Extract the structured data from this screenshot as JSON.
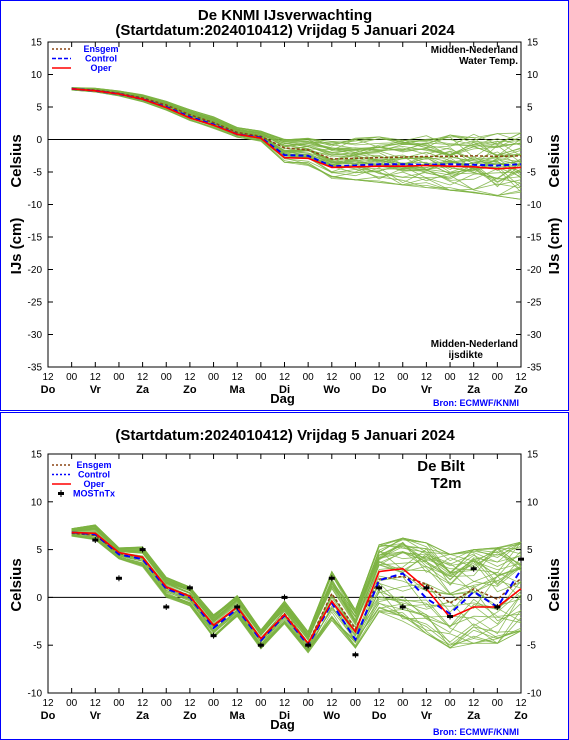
{
  "colors": {
    "ensemble": "#7cb342",
    "ensgem": "#8b4513",
    "control": "#0000ff",
    "oper": "#ff0000",
    "frame": "#0000ff"
  },
  "chart_data": [
    {
      "type": "line",
      "title": "De KNMI IJsverwachting",
      "subtitle": "(Startdatum:2024010412)  Vrijdag  5 Januari 2024",
      "xlabel": "Dag",
      "ylabel_left": "Celsius",
      "ylabel_left2": "IJs (cm)",
      "ylabel_right": "Celsius",
      "ylabel_right2": "IJs (cm)",
      "ylim": [
        -35,
        15
      ],
      "yticks": [
        "15",
        "10",
        "5",
        "0",
        "-5",
        "-10",
        "-15",
        "-20",
        "-25",
        "-30",
        "-35"
      ],
      "xticks_hours": [
        "12",
        "00",
        "12",
        "00",
        "12",
        "00",
        "12",
        "00",
        "12",
        "00",
        "12",
        "00",
        "12",
        "00",
        "12",
        "00",
        "12",
        "00",
        "12",
        "00",
        "12"
      ],
      "xticks_days": [
        {
          "label": "Do",
          "i": 0
        },
        {
          "label": "Vr",
          "i": 2
        },
        {
          "label": "Za",
          "i": 4
        },
        {
          "label": "Zo",
          "i": 6
        },
        {
          "label": "Ma",
          "i": 8
        },
        {
          "label": "Di",
          "i": 10
        },
        {
          "label": "Wo",
          "i": 12
        },
        {
          "label": "Do",
          "i": 14
        },
        {
          "label": "Vr",
          "i": 16
        },
        {
          "label": "Za",
          "i": 18
        },
        {
          "label": "Zo",
          "i": 20
        }
      ],
      "annotation_top": [
        "Midden-Nederland",
        "Water Temp."
      ],
      "annotation_bottom": [
        "Midden-Nederland",
        "ijsdikte"
      ],
      "source": "Bron: ECMWF/KNMI",
      "legend": [
        {
          "name": "Ensgem",
          "style": "dotted",
          "color": "#8b4513"
        },
        {
          "name": "Control",
          "style": "dashed",
          "color": "#0000ff"
        },
        {
          "name": "Oper",
          "style": "solid",
          "color": "#ff0000"
        }
      ],
      "x": [
        1,
        2,
        3,
        4,
        5,
        6,
        7,
        8,
        9,
        10,
        11,
        12,
        13,
        14,
        15,
        16,
        17,
        18,
        19,
        20
      ],
      "series": [
        {
          "name": "Ensgem",
          "values": [
            7.8,
            7.6,
            7.1,
            6.4,
            5.3,
            3.8,
            2.6,
            1.1,
            0.5,
            -1.3,
            -1.6,
            -3.0,
            -2.9,
            -2.8,
            -2.7,
            -2.6,
            -2.6,
            -2.5,
            -2.6,
            -2.5
          ]
        },
        {
          "name": "Control",
          "values": [
            7.8,
            7.5,
            7.0,
            6.2,
            5.0,
            3.5,
            2.3,
            0.8,
            0.3,
            -2.4,
            -2.5,
            -4.1,
            -4.0,
            -3.8,
            -3.8,
            -3.9,
            -3.8,
            -3.9,
            -4.0,
            -3.8
          ]
        },
        {
          "name": "Oper",
          "values": [
            7.8,
            7.5,
            7.0,
            6.2,
            4.9,
            3.3,
            2.2,
            0.8,
            0.2,
            -2.8,
            -2.9,
            -4.3,
            -4.2,
            -4.1,
            -4.1,
            -4.0,
            -4.1,
            -4.2,
            -4.5,
            -4.3
          ]
        }
      ],
      "spread_low": [
        7.6,
        7.3,
        6.7,
        5.8,
        4.5,
        2.9,
        1.7,
        0.3,
        -0.3,
        -3.5,
        -4.0,
        -6.0,
        -6.2,
        -6.6,
        -7.0,
        -7.4,
        -7.8,
        -8.2,
        -8.7,
        -9.2
      ],
      "spread_high": [
        8.0,
        7.9,
        7.5,
        6.9,
        5.9,
        4.6,
        3.5,
        1.9,
        1.3,
        0.2,
        0.4,
        -0.3,
        0.2,
        0.4,
        0.5,
        0.6,
        0.7,
        0.8,
        0.9,
        1.0
      ]
    },
    {
      "type": "line",
      "subtitle": "(Startdatum:2024010412)  Vrijdag  5 Januari 2024",
      "xlabel": "Dag",
      "ylabel_left": "Celsius",
      "ylabel_right": "Celsius",
      "ylim": [
        -10,
        15
      ],
      "yticks": [
        "15",
        "10",
        "5",
        "0",
        "-5",
        "-10"
      ],
      "xticks_hours": [
        "12",
        "00",
        "12",
        "00",
        "12",
        "00",
        "12",
        "00",
        "12",
        "00",
        "12",
        "00",
        "12",
        "00",
        "12",
        "00",
        "12",
        "00",
        "12",
        "00",
        "12"
      ],
      "xticks_days": [
        {
          "label": "Do",
          "i": 0
        },
        {
          "label": "Vr",
          "i": 2
        },
        {
          "label": "Za",
          "i": 4
        },
        {
          "label": "Zo",
          "i": 6
        },
        {
          "label": "Ma",
          "i": 8
        },
        {
          "label": "Di",
          "i": 10
        },
        {
          "label": "Wo",
          "i": 12
        },
        {
          "label": "Do",
          "i": 14
        },
        {
          "label": "Vr",
          "i": 16
        },
        {
          "label": "Za",
          "i": 18
        },
        {
          "label": "Zo",
          "i": 20
        }
      ],
      "annotation": [
        "De Bilt",
        "T2m"
      ],
      "source": "Bron: ECMWF/KNMI",
      "legend": [
        {
          "name": "Ensgem",
          "style": "dotted",
          "color": "#8b4513"
        },
        {
          "name": "Control",
          "style": "dotted",
          "color": "#0000ff"
        },
        {
          "name": "Oper",
          "style": "solid",
          "color": "#ff0000"
        },
        {
          "name": "MOSTnTx",
          "style": "marker",
          "color": "#000000"
        }
      ],
      "x": [
        1,
        2,
        3,
        4,
        5,
        6,
        7,
        8,
        9,
        10,
        11,
        12,
        13,
        14,
        15,
        16,
        17,
        18,
        19,
        20
      ],
      "series": [
        {
          "name": "Ensgem",
          "values": [
            6.7,
            6.5,
            4.6,
            4.2,
            1.0,
            0.2,
            -3.0,
            -1.0,
            -4.4,
            -1.7,
            -4.8,
            0.4,
            -3.3,
            1.9,
            2.2,
            1.4,
            -0.6,
            0.9,
            -0.2,
            2.0
          ]
        },
        {
          "name": "Control",
          "values": [
            6.8,
            6.6,
            4.5,
            4.0,
            0.9,
            0.0,
            -3.2,
            -1.2,
            -4.5,
            -1.9,
            -5.0,
            -0.6,
            -4.4,
            1.8,
            2.5,
            -0.1,
            -1.7,
            0.6,
            -1.0,
            2.9
          ]
        },
        {
          "name": "Oper",
          "values": [
            6.8,
            6.7,
            4.7,
            4.2,
            1.1,
            0.1,
            -2.9,
            -1.0,
            -4.3,
            -1.8,
            -4.8,
            -0.4,
            -3.6,
            2.7,
            3.0,
            0.9,
            -2.1,
            -1.0,
            -1.0,
            0.9
          ]
        }
      ],
      "markers": {
        "name": "MOSTnTx",
        "x": [
          2,
          3,
          4,
          5,
          6,
          7,
          8,
          9,
          10,
          11,
          12,
          13,
          14,
          15,
          16,
          17,
          18,
          19,
          20
        ],
        "values": [
          6.0,
          2.0,
          5.0,
          -1.0,
          1.0,
          -4.0,
          -1.0,
          -5.0,
          0.0,
          -5.0,
          2.0,
          -6.0,
          1.0,
          -1.0,
          1.0,
          -2.0,
          3.0,
          -1.0,
          4.0
        ]
      },
      "spread_low": [
        6.4,
        6.0,
        4.0,
        3.2,
        0.0,
        -0.9,
        -4.2,
        -2.0,
        -5.4,
        -2.8,
        -5.8,
        -2.4,
        -5.3,
        -1.5,
        -2.5,
        -3.8,
        -5.3,
        -4.8,
        -4.8,
        -3.5
      ],
      "spread_high": [
        7.2,
        7.6,
        5.2,
        5.3,
        2.1,
        1.1,
        -1.8,
        0.2,
        -3.4,
        -0.4,
        -3.6,
        2.7,
        -1.3,
        5.5,
        6.2,
        5.7,
        4.5,
        5.0,
        5.2,
        5.8
      ]
    }
  ]
}
